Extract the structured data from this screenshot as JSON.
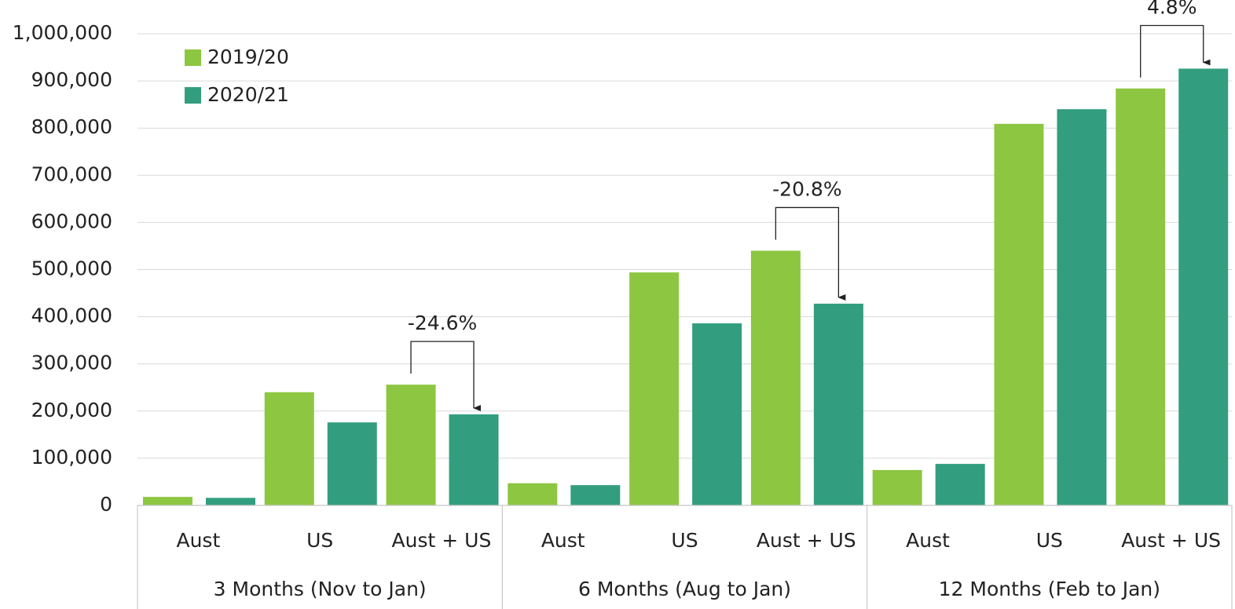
{
  "chart_data": {
    "type": "bar",
    "categories": [
      "Aust",
      "US",
      "Aust + US",
      "Aust",
      "US",
      "Aust + US",
      "Aust",
      "US",
      "Aust + US"
    ],
    "groups": [
      "3 Months (Nov to Jan)",
      "6 Months (Aug to Jan)",
      "12 Months (Feb to Jan)"
    ],
    "series": [
      {
        "name": "2019/20",
        "color": "#8dc641",
        "values": [
          18000,
          240000,
          256000,
          47000,
          494000,
          540000,
          75000,
          809000,
          884000
        ]
      },
      {
        "name": "2020/21",
        "color": "#329e7f",
        "values": [
          16000,
          176000,
          193000,
          43000,
          386000,
          427700,
          88000,
          840000,
          926000
        ]
      }
    ],
    "annotations": [
      "-24.6%",
      "-20.8%",
      "4.8%"
    ],
    "ylim": [
      0,
      1000000
    ],
    "yticks": [
      0,
      {
        "value": 100000,
        "label": "100,000"
      },
      {
        "value": 200000,
        "label": "200,000"
      },
      {
        "value": 300000,
        "label": "300,000"
      },
      {
        "value": 400000,
        "label": "400,000"
      },
      {
        "value": 500000,
        "label": "500,000"
      },
      {
        "value": 600000,
        "label": "600,000"
      },
      {
        "value": 700000,
        "label": "700,000"
      },
      {
        "value": 800000,
        "label": "800,000"
      },
      {
        "value": 900000,
        "label": "900,000"
      },
      {
        "value": 1000000,
        "label": "1,000,000"
      }
    ],
    "grid": true,
    "legend": "top-left"
  }
}
